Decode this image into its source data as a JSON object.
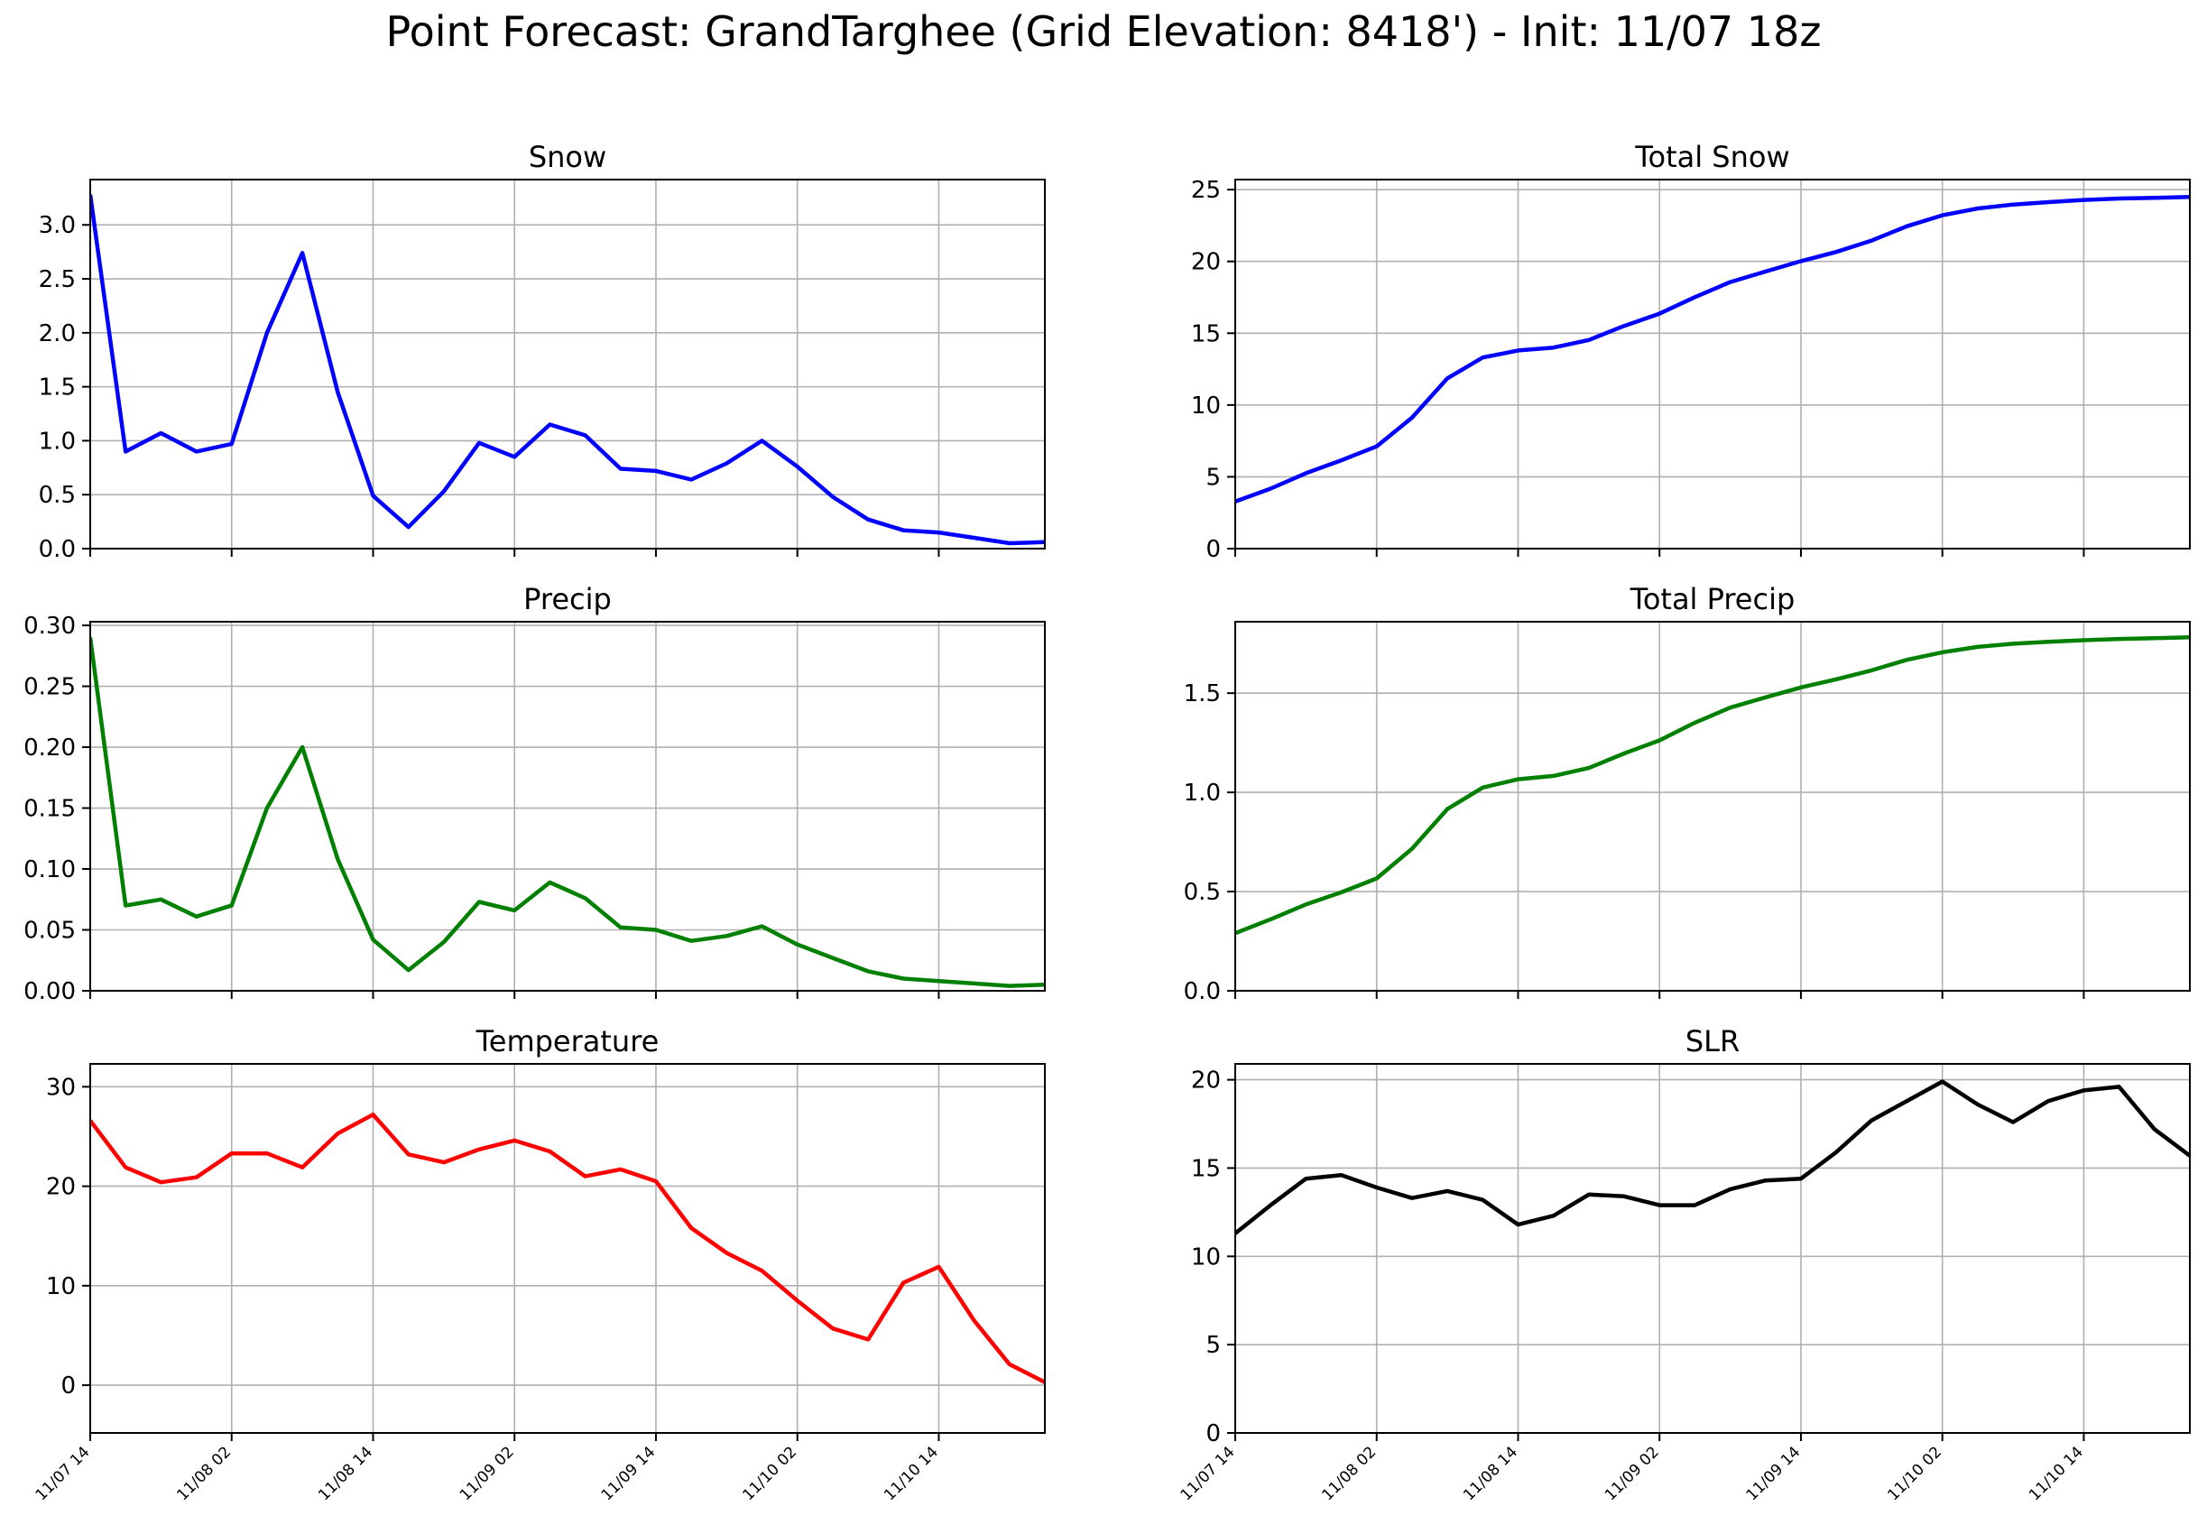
{
  "title": "Point Forecast: GrandTarghee (Grid Elevation: 8418') - Init: 11/07 18z",
  "x_tick_labels": [
    "11/07 14",
    "11/08 02",
    "11/08 14",
    "11/09 02",
    "11/09 14",
    "11/10 02",
    "11/10 14"
  ],
  "chart_data": [
    {
      "type": "line",
      "title": "Snow",
      "color": "#0000ff",
      "x": [
        0,
        3,
        6,
        9,
        12,
        15,
        18,
        21,
        24,
        27,
        30,
        33,
        36,
        39,
        42,
        45,
        48,
        51,
        54,
        57,
        60,
        63,
        66,
        69,
        72,
        75,
        78,
        81
      ],
      "values": [
        3.28,
        0.9,
        1.07,
        0.9,
        0.97,
        2.0,
        2.74,
        1.45,
        0.49,
        0.2,
        0.53,
        0.98,
        0.85,
        1.15,
        1.05,
        0.74,
        0.72,
        0.64,
        0.79,
        1.0,
        0.76,
        0.48,
        0.27,
        0.17,
        0.15,
        0.1,
        0.05,
        0.06
      ],
      "ylim": [
        0,
        3.42
      ],
      "yticks": [
        0,
        0.5,
        1.0,
        1.5,
        2.0,
        2.5,
        3.0
      ],
      "ytick_labels": [
        "0.0",
        "0.5",
        "1.0",
        "1.5",
        "2.0",
        "2.5",
        "3.0"
      ],
      "grid": true
    },
    {
      "type": "line",
      "title": "Total Snow",
      "color": "#0000ff",
      "x": [
        0,
        3,
        6,
        9,
        12,
        15,
        18,
        21,
        24,
        27,
        30,
        33,
        36,
        39,
        42,
        45,
        48,
        51,
        54,
        57,
        60,
        63,
        66,
        69,
        72,
        75,
        78,
        81
      ],
      "values": [
        3.28,
        4.18,
        5.25,
        6.15,
        7.12,
        9.12,
        11.86,
        13.31,
        13.8,
        14.0,
        14.53,
        15.51,
        16.36,
        17.51,
        18.56,
        19.3,
        20.02,
        20.66,
        21.45,
        22.45,
        23.21,
        23.69,
        23.96,
        24.13,
        24.28,
        24.38,
        24.43,
        24.49
      ],
      "ylim": [
        0,
        25.7
      ],
      "yticks": [
        0,
        5,
        10,
        15,
        20,
        25
      ],
      "ytick_labels": [
        "0",
        "5",
        "10",
        "15",
        "20",
        "25"
      ],
      "grid": true
    },
    {
      "type": "line",
      "title": "Precip",
      "color": "#008000",
      "x": [
        0,
        3,
        6,
        9,
        12,
        15,
        18,
        21,
        24,
        27,
        30,
        33,
        36,
        39,
        42,
        45,
        48,
        51,
        54,
        57,
        60,
        63,
        66,
        69,
        72,
        75,
        78,
        81
      ],
      "values": [
        0.29,
        0.07,
        0.075,
        0.061,
        0.07,
        0.15,
        0.2,
        0.108,
        0.042,
        0.017,
        0.04,
        0.073,
        0.066,
        0.089,
        0.076,
        0.052,
        0.05,
        0.041,
        0.045,
        0.053,
        0.038,
        0.027,
        0.016,
        0.01,
        0.008,
        0.006,
        0.004,
        0.005
      ],
      "ylim": [
        0,
        0.303
      ],
      "yticks": [
        0,
        0.05,
        0.1,
        0.15,
        0.2,
        0.25,
        0.3
      ],
      "ytick_labels": [
        "0.00",
        "0.05",
        "0.10",
        "0.15",
        "0.20",
        "0.25",
        "0.30"
      ],
      "grid": true
    },
    {
      "type": "line",
      "title": "Total Precip",
      "color": "#008000",
      "x": [
        0,
        3,
        6,
        9,
        12,
        15,
        18,
        21,
        24,
        27,
        30,
        33,
        36,
        39,
        42,
        45,
        48,
        51,
        54,
        57,
        60,
        63,
        66,
        69,
        72,
        75,
        78,
        81
      ],
      "values": [
        0.29,
        0.36,
        0.435,
        0.496,
        0.566,
        0.716,
        0.916,
        1.024,
        1.066,
        1.083,
        1.123,
        1.196,
        1.262,
        1.351,
        1.427,
        1.479,
        1.529,
        1.57,
        1.615,
        1.668,
        1.706,
        1.733,
        1.749,
        1.759,
        1.767,
        1.773,
        1.777,
        1.782
      ],
      "ylim": [
        0,
        1.86
      ],
      "yticks": [
        0,
        0.5,
        1.0,
        1.5
      ],
      "ytick_labels": [
        "0.0",
        "0.5",
        "1.0",
        "1.5"
      ],
      "grid": true
    },
    {
      "type": "line",
      "title": "Temperature",
      "color": "#ff0000",
      "x": [
        0,
        3,
        6,
        9,
        12,
        15,
        18,
        21,
        24,
        27,
        30,
        33,
        36,
        39,
        42,
        45,
        48,
        51,
        54,
        57,
        60,
        63,
        66,
        69,
        72,
        75,
        78,
        81
      ],
      "values": [
        26.6,
        21.9,
        20.4,
        20.9,
        23.3,
        23.3,
        21.9,
        25.3,
        27.2,
        23.2,
        22.4,
        23.7,
        24.6,
        23.5,
        21.0,
        21.7,
        20.5,
        15.8,
        13.3,
        11.5,
        8.5,
        5.7,
        4.6,
        10.3,
        11.9,
        6.5,
        2.1,
        0.3
      ],
      "ylim": [
        -4.8,
        32.3
      ],
      "yticks": [
        0,
        10,
        20,
        30
      ],
      "ytick_labels": [
        "0",
        "10",
        "20",
        "30"
      ],
      "grid": true
    },
    {
      "type": "line",
      "title": "SLR",
      "color": "#000000",
      "x": [
        0,
        3,
        6,
        9,
        12,
        15,
        18,
        21,
        24,
        27,
        30,
        33,
        36,
        39,
        42,
        45,
        48,
        51,
        54,
        57,
        60,
        63,
        66,
        69,
        72,
        75,
        78,
        81
      ],
      "values": [
        11.3,
        12.9,
        14.4,
        14.6,
        13.9,
        13.3,
        13.7,
        13.2,
        11.8,
        12.3,
        13.5,
        13.4,
        12.9,
        12.9,
        13.8,
        14.3,
        14.4,
        15.9,
        17.7,
        18.8,
        19.9,
        18.6,
        17.6,
        18.8,
        19.4,
        19.6,
        17.2,
        15.7
      ],
      "ylim": [
        0,
        20.9
      ],
      "yticks": [
        0,
        5,
        10,
        15,
        20
      ],
      "ytick_labels": [
        "0",
        "5",
        "10",
        "15",
        "20"
      ],
      "grid": true
    }
  ]
}
